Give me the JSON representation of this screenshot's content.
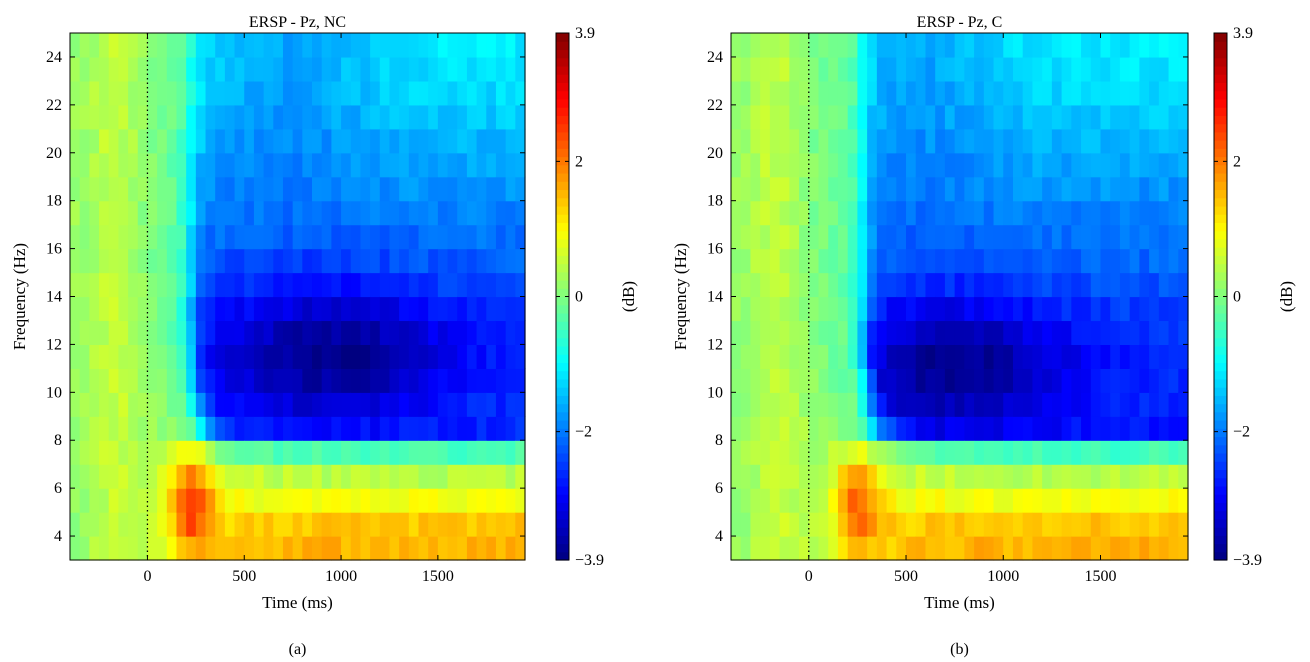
{
  "chart_data": [
    {
      "type": "heatmap",
      "panel_label": "(a)",
      "title": "ERSP - Pz, NC",
      "xlabel": "Time (ms)",
      "ylabel": "Frequency (Hz)",
      "colorbar_label": "(dB)",
      "xlim": [
        -400,
        1950
      ],
      "ylim": [
        3,
        25
      ],
      "x_ticks": [
        0,
        500,
        1000,
        1500
      ],
      "x_tick_labels": [
        "0",
        "500",
        "1000",
        "1500"
      ],
      "y_ticks": [
        4,
        6,
        8,
        10,
        12,
        14,
        16,
        18,
        20,
        22,
        24
      ],
      "y_tick_labels": [
        "4",
        "6",
        "8",
        "10",
        "12",
        "14",
        "16",
        "18",
        "20",
        "22",
        "24"
      ],
      "clim": [
        -3.9,
        3.9
      ],
      "colorbar_ticks": [
        3.9,
        2,
        0,
        -2,
        -3.9
      ],
      "colorbar_tick_labels": [
        "3.9",
        "2",
        "0",
        "−2",
        "−3.9"
      ],
      "colormap": "jet",
      "event_marker_time": 0,
      "features": {
        "theta_sync": {
          "t_from": 100,
          "t_to": 350,
          "f_from": 3,
          "f_to": 8,
          "peak_db": 2.3
        },
        "alpha_beta_desync": {
          "t_from": 220,
          "f_from": 8,
          "f_to": 25,
          "peak_db": -3.6,
          "peak_time": 950,
          "peak_freq": 11.5
        },
        "desync_border": {
          "f": 8,
          "t_from": 350,
          "db": -1.5
        }
      }
    },
    {
      "type": "heatmap",
      "panel_label": "(b)",
      "title": "ERSP - Pz, C",
      "xlabel": "Time (ms)",
      "ylabel": "Frequency (Hz)",
      "colorbar_label": "(dB)",
      "xlim": [
        -400,
        1950
      ],
      "ylim": [
        3,
        25
      ],
      "x_ticks": [
        0,
        500,
        1000,
        1500
      ],
      "x_tick_labels": [
        "0",
        "500",
        "1000",
        "1500"
      ],
      "y_ticks": [
        4,
        6,
        8,
        10,
        12,
        14,
        16,
        18,
        20,
        22,
        24
      ],
      "y_tick_labels": [
        "4",
        "6",
        "8",
        "10",
        "12",
        "14",
        "16",
        "18",
        "20",
        "22",
        "24"
      ],
      "clim": [
        -3.9,
        3.9
      ],
      "colorbar_ticks": [
        3.9,
        2,
        0,
        -2,
        -3.9
      ],
      "colorbar_tick_labels": [
        "3.9",
        "2",
        "0",
        "−2",
        "−3.9"
      ],
      "colormap": "jet",
      "event_marker_time": 0,
      "features": {
        "theta_sync": {
          "t_from": 150,
          "t_to": 350,
          "f_from": 3,
          "f_to": 8,
          "peak_db": 2.0
        },
        "alpha_beta_desync": {
          "t_from": 280,
          "f_from": 8,
          "f_to": 25,
          "peak_db": -3.7,
          "peak_time": 750,
          "peak_freq": 11.0
        },
        "desync_border": {
          "f": 8,
          "t_from": 400,
          "db": -1.6
        }
      }
    }
  ]
}
